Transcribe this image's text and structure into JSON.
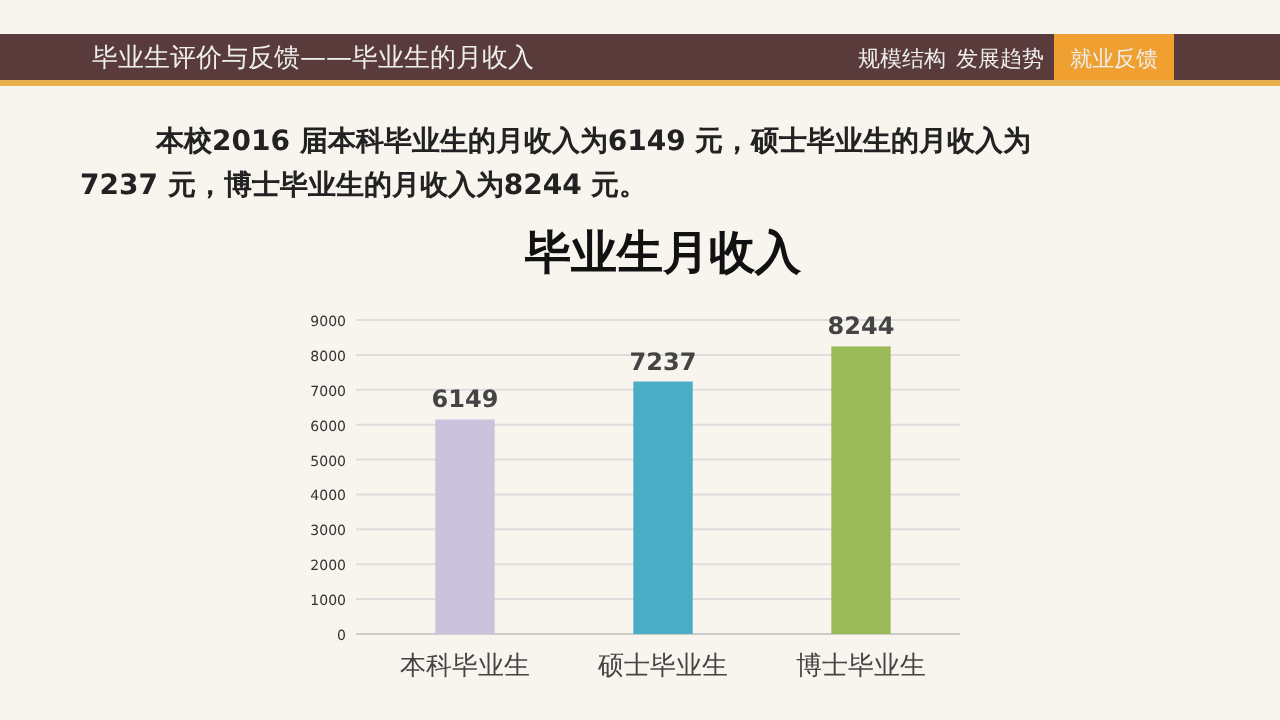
{
  "chart_data": {
    "type": "bar",
    "title": "毕业生月收入",
    "annotations": [
      "毕业生评价与反馈——毕业生的月收入",
      "规模结构",
      "发展趋势",
      "就业反馈",
      "本校2016 届本科毕业生的月收入为6149 元，硕士毕业生的月收入为7237 元，博士毕业生的月收入为8244 元。"
    ],
    "categories": [
      "本科毕业生",
      "硕士毕业生",
      "博士毕业生"
    ],
    "values": [
      6149,
      7237,
      8244
    ],
    "colors": [
      "#c9c3dd",
      "#4bacc6",
      "#9bbb59"
    ],
    "ylim": [
      0,
      9000
    ],
    "yticks": [
      0,
      1000,
      2000,
      3000,
      4000,
      5000,
      6000,
      7000,
      8000,
      9000
    ],
    "grid": "y",
    "data_labels": true
  }
}
